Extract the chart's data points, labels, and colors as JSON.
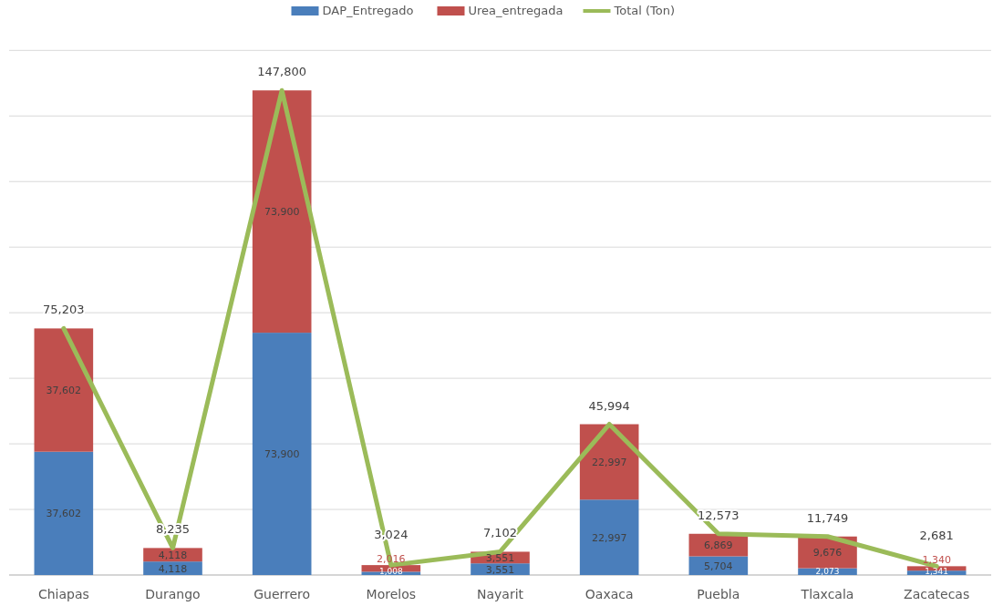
{
  "chart_data": {
    "type": "bar",
    "stacked": true,
    "categories": [
      "Chiapas",
      "Durango",
      "Guerrero",
      "Morelos",
      "Nayarit",
      "Oaxaca",
      "Puebla",
      "Tlaxcala",
      "Zacatecas"
    ],
    "series": [
      {
        "name": "DAP_Entregado",
        "color": "#4a7ebb",
        "values": [
          37602,
          4118,
          73900,
          1008,
          3551,
          22997,
          5704,
          2073,
          1341
        ],
        "value_labels": [
          "37,602",
          "4,118",
          "73,900",
          "1,008",
          "3,551",
          "22,997",
          "5,704",
          "2,073",
          "1,341"
        ]
      },
      {
        "name": "Urea_entregada",
        "color": "#c0504d",
        "values": [
          37602,
          4118,
          73900,
          2016,
          3551,
          22997,
          6869,
          9676,
          1340
        ],
        "value_labels": [
          "37,602",
          "4,118",
          "73,900",
          "2,016",
          "3,551",
          "22,997",
          "6,869",
          "9,676",
          "1,340"
        ]
      },
      {
        "type": "line",
        "name": "Total (Ton)",
        "color": "#9bbb59",
        "values": [
          75203,
          8235,
          147800,
          3024,
          7102,
          45994,
          12573,
          11749,
          2681
        ],
        "value_labels": [
          "75,203",
          "8,235",
          "147,800",
          "3,024",
          "7,102",
          "45,994",
          "12,573",
          "11,749",
          "2,681"
        ]
      }
    ],
    "tick_labels": "x",
    "grid": "y",
    "legend": "top",
    "marker": "none",
    "line_style": "solid"
  }
}
